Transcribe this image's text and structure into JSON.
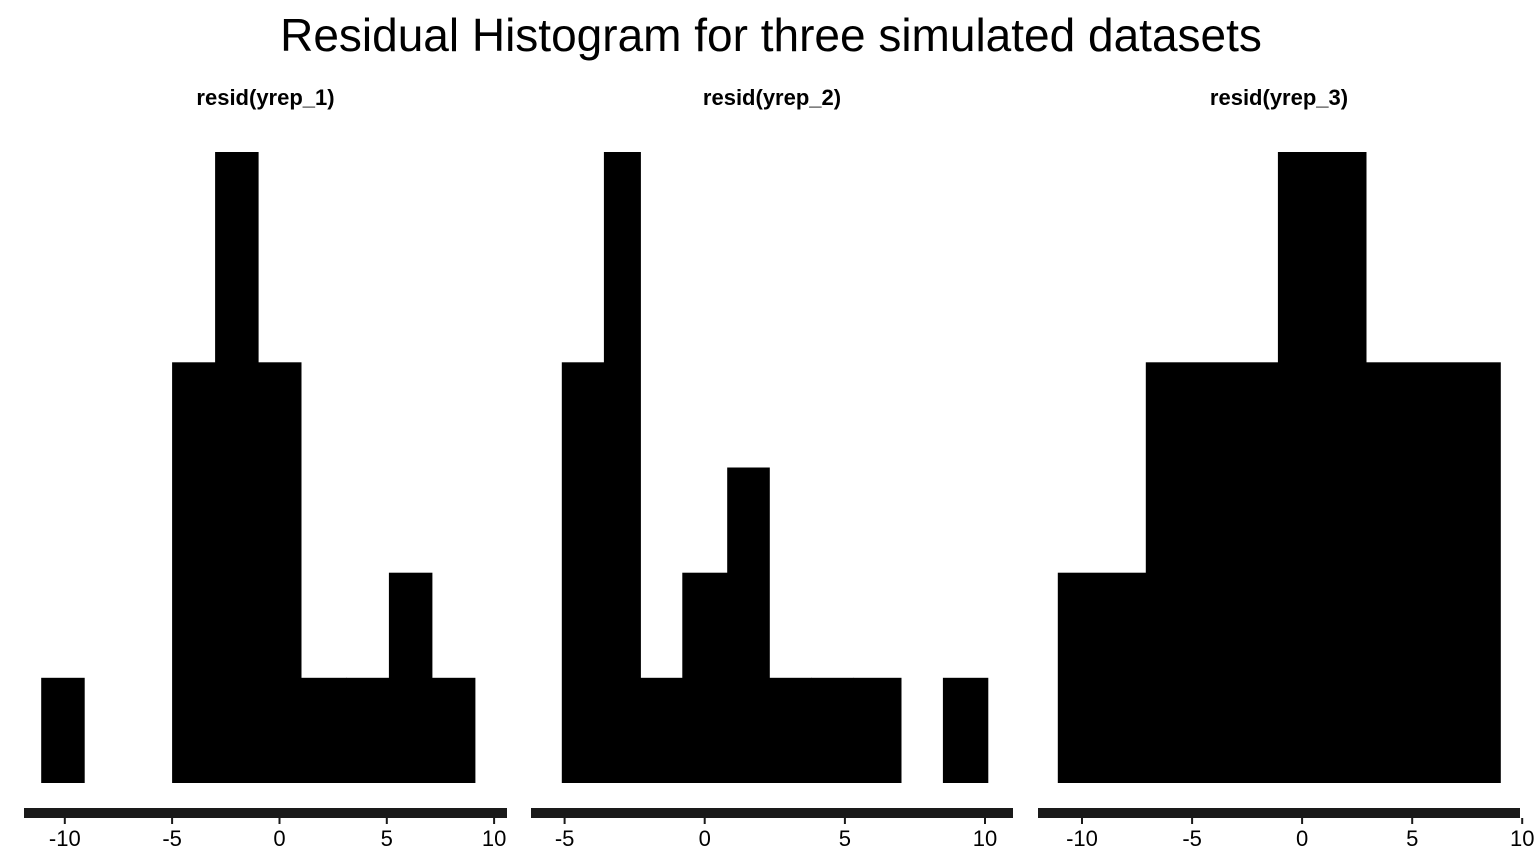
{
  "chart_data": {
    "type": "bar",
    "title": "Residual Histogram for three simulated datasets",
    "xlabel": "",
    "ylabel": "",
    "grid": false,
    "y_axis_shown": false,
    "bar_color": "#000000",
    "axis_line_color": "#1a1a1a",
    "ylim": [
      0,
      6
    ],
    "panels": [
      {
        "name": "resid(yrep_1)",
        "xlim": [
          -11.9,
          10.6
        ],
        "x_ticks": [
          -10,
          -5,
          0,
          5,
          10
        ],
        "x_tick_labels": [
          "-10",
          "-5",
          "0",
          "5",
          "10"
        ],
        "bins": [
          {
            "x0": -11.1,
            "x1": -9.1,
            "count": 1
          },
          {
            "x0": -9.1,
            "x1": -7.0,
            "count": 0
          },
          {
            "x0": -7.0,
            "x1": -5.0,
            "count": 0
          },
          {
            "x0": -5.0,
            "x1": -3.0,
            "count": 4
          },
          {
            "x0": -3.0,
            "x1": -1.0,
            "count": 6
          },
          {
            "x0": -1.0,
            "x1": 1.0,
            "count": 4
          },
          {
            "x0": 1.0,
            "x1": 3.1,
            "count": 1
          },
          {
            "x0": 3.1,
            "x1": 5.1,
            "count": 1
          },
          {
            "x0": 5.1,
            "x1": 7.1,
            "count": 2
          },
          {
            "x0": 7.1,
            "x1": 9.1,
            "count": 1
          }
        ]
      },
      {
        "name": "resid(yrep_2)",
        "xlim": [
          -6.2,
          11.0
        ],
        "x_ticks": [
          -5,
          0,
          5,
          10
        ],
        "x_tick_labels": [
          "-5",
          "0",
          "5",
          "10"
        ],
        "bins": [
          {
            "x0": -5.1,
            "x1": -3.6,
            "count": 4
          },
          {
            "x0": -3.6,
            "x1": -2.3,
            "count": 6
          },
          {
            "x0": -2.3,
            "x1": -0.8,
            "count": 1
          },
          {
            "x0": -0.8,
            "x1": 0.8,
            "count": 2
          },
          {
            "x0": 0.8,
            "x1": 2.3,
            "count": 3
          },
          {
            "x0": 2.3,
            "x1": 3.8,
            "count": 1
          },
          {
            "x0": 3.8,
            "x1": 5.3,
            "count": 1
          },
          {
            "x0": 5.3,
            "x1": 7.0,
            "count": 1
          },
          {
            "x0": 7.0,
            "x1": 8.5,
            "count": 0
          },
          {
            "x0": 8.5,
            "x1": 10.1,
            "count": 1
          }
        ]
      },
      {
        "name": "resid(yrep_3)",
        "xlim": [
          -12.0,
          9.9
        ],
        "x_ticks": [
          -10,
          -5,
          0,
          5,
          10
        ],
        "x_tick_labels": [
          "-10",
          "-5",
          "0",
          "5",
          "10"
        ],
        "bins": [
          {
            "x0": -11.1,
            "x1": -7.1,
            "count": 2
          },
          {
            "x0": -7.1,
            "x1": -1.1,
            "count": 4
          },
          {
            "x0": -1.1,
            "x1": 2.9,
            "count": 6
          },
          {
            "x0": 2.9,
            "x1": 9.0,
            "count": 4
          }
        ]
      }
    ]
  }
}
